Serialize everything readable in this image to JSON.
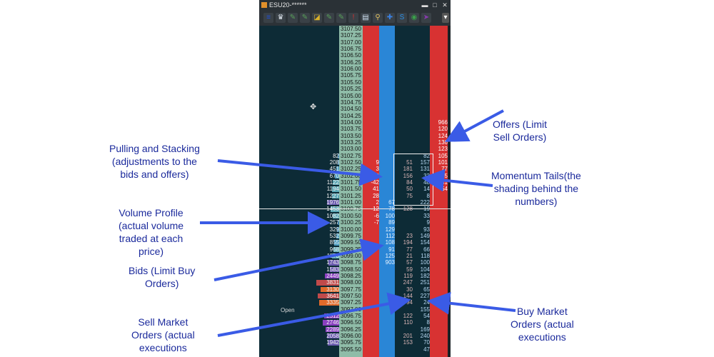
{
  "window": {
    "title": "ESU20-******",
    "min_glyph": "▬",
    "max_glyph": "□",
    "close_glyph": "✕"
  },
  "toolbar": {
    "buttons": [
      {
        "icon": "settings-icon",
        "glyph": "≡",
        "color": "#1f4fd8"
      },
      {
        "icon": "tooth-icon",
        "glyph": "♛",
        "color": "#dfe6ee"
      },
      {
        "icon": "note-icon",
        "glyph": "✎",
        "color": "#5aa05a"
      },
      {
        "icon": "note-icon-2",
        "glyph": "✎",
        "color": "#5aa05a"
      },
      {
        "icon": "eraser-icon",
        "glyph": "◪",
        "color": "#d8b02a"
      },
      {
        "icon": "note-icon-3",
        "glyph": "✎",
        "color": "#5aa05a"
      },
      {
        "icon": "note-icon-4",
        "glyph": "✎",
        "color": "#5aa05a"
      },
      {
        "icon": "alert-icon",
        "glyph": "!",
        "color": "#d83030"
      },
      {
        "icon": "document-icon",
        "glyph": "▤",
        "color": "#cfe0f0"
      },
      {
        "icon": "link-icon",
        "glyph": "⚲",
        "color": "#e0c060"
      },
      {
        "icon": "wrench-icon",
        "glyph": "✚",
        "color": "#3a80e0"
      },
      {
        "icon": "dollar-icon",
        "glyph": "S",
        "color": "#2a8fe8"
      },
      {
        "icon": "globe-icon",
        "glyph": "◉",
        "color": "#3aa04a"
      },
      {
        "icon": "arrow-icon",
        "glyph": "➤",
        "color": "#8a3ab0"
      }
    ],
    "dropdown_glyph": "▾"
  },
  "ladder": {
    "rows": [
      {
        "price": "3107.50"
      },
      {
        "price": "3107.25"
      },
      {
        "price": "3107.00"
      },
      {
        "price": "3106.75"
      },
      {
        "price": "3106.50"
      },
      {
        "price": "3106.25"
      },
      {
        "price": "3106.00"
      },
      {
        "price": "3105.75"
      },
      {
        "price": "3105.50"
      },
      {
        "price": "3105.25"
      },
      {
        "price": "3105.00"
      },
      {
        "price": "3104.75"
      },
      {
        "price": "3104.50"
      },
      {
        "price": "3104.25"
      },
      {
        "price": "3104.00",
        "offer": "966"
      },
      {
        "price": "3103.75",
        "offer": "120"
      },
      {
        "price": "3103.50",
        "offer": "124"
      },
      {
        "price": "3103.25",
        "offer": "136"
      },
      {
        "price": "3103.00",
        "offer": "123"
      },
      {
        "price": "3102.75",
        "vol": "82",
        "buy": "82",
        "offer": "105"
      },
      {
        "price": "3102.50",
        "vol": "208",
        "ask": "9",
        "sell": "51",
        "buy": "157",
        "offer": "101"
      },
      {
        "price": "3102.25",
        "vol": "451",
        "ask": "3",
        "sell": "181",
        "buy": "131",
        "offer": "77"
      },
      {
        "price": "3102.00",
        "vol": "670",
        "ask": "9",
        "sell": "156",
        "buy": "33",
        "offer": "35"
      },
      {
        "price": "3101.75",
        "vol": "1122",
        "ask": "-42",
        "sell": "84",
        "buy": "48",
        "offer": "41"
      },
      {
        "price": "3101.50",
        "vol": "1194",
        "ask": "41",
        "sell": "50",
        "buy": "14",
        "offer": "54"
      },
      {
        "price": "3101.25",
        "vol": "1227",
        "ask": "28",
        "sell": "75",
        "buy": "8"
      },
      {
        "price": "3101.00",
        "vol": "1976",
        "ask": "2",
        "bid": "67",
        "buy": "222"
      },
      {
        "price": "3100.75",
        "vol": "1453",
        "ask": "-12",
        "bid": "78",
        "sell": "128",
        "buy": "19"
      },
      {
        "price": "3100.50",
        "vol": "1082",
        "ask": "-6",
        "bid": "100",
        "buy": "33"
      },
      {
        "price": "3100.25",
        "vol": "257",
        "ask": "-7",
        "bid": "89",
        "buy": "9"
      },
      {
        "price": "3100.00",
        "vol": "329",
        "bid": "129",
        "buy": "93"
      },
      {
        "price": "3099.75",
        "vol": "532",
        "bid": "112",
        "sell": "23",
        "buy": "149"
      },
      {
        "price": "3099.50",
        "vol": "855",
        "bid": "108",
        "sell": "194",
        "buy": "154"
      },
      {
        "price": "3099.25",
        "vol": "968",
        "bid": "91",
        "sell": "77",
        "buy": "66"
      },
      {
        "price": "3099.00",
        "vol": "1178",
        "bid": "125",
        "sell": "21",
        "buy": "118"
      },
      {
        "price": "3098.75",
        "vol": "1743",
        "bid": "903",
        "sell": "57",
        "buy": "100"
      },
      {
        "price": "3098.50",
        "vol": "1583",
        "sell": "59",
        "buy": "104"
      },
      {
        "price": "3098.25",
        "vol": "2449",
        "sell": "119",
        "buy": "182"
      },
      {
        "price": "3098.00",
        "vol": "3831",
        "sell": "247",
        "buy": "251"
      },
      {
        "price": "3097.75",
        "vol": "3130",
        "sell": "30",
        "buy": "65"
      },
      {
        "price": "3097.50",
        "vol": "3641",
        "sell": "144",
        "buy": "227"
      },
      {
        "price": "3097.25",
        "vol": "3335",
        "sell": "94",
        "buy": "24"
      },
      {
        "price": "3097.00",
        "buy": "155"
      },
      {
        "price": "3096.75",
        "vol": "2512",
        "sell": "122",
        "buy": "54"
      },
      {
        "price": "3096.50",
        "vol": "2746",
        "sell": "110",
        "buy": "8"
      },
      {
        "price": "3096.25",
        "vol": "2289",
        "buy": "169"
      },
      {
        "price": "3096.00",
        "vol": "2058",
        "sell": "201",
        "buy": "240"
      },
      {
        "price": "3095.75",
        "vol": "1942",
        "sell": "153",
        "buy": "70"
      },
      {
        "price": "3095.50",
        "buy": "47"
      }
    ],
    "open_label": "Open"
  },
  "annotations": {
    "offers": "Offers (Limit\nSell Orders)",
    "pulling": "Pulling and Stacking\n(adjustments to the\nbids and offers)",
    "momentum": "Momentum Tails(the\nshading behind the\nnumbers)",
    "volume_profile": "Volume Profile\n(actual volume\ntraded at each\nprice)",
    "bids": "Bids (Limit Buy\nOrders)",
    "sell_market": "Sell Market\nOrders (actual\nexecutions",
    "buy_market": "Buy Market\nOrders (actual\nexecutions"
  },
  "colors": {
    "window_bg": "#0d2b36",
    "price_col": "#8fbca8",
    "ask_col": "#d83232",
    "bid_col": "#2a86d6",
    "offer_col": "#d83232",
    "arrow": "#3a5be6",
    "label": "#1b2a9c"
  }
}
